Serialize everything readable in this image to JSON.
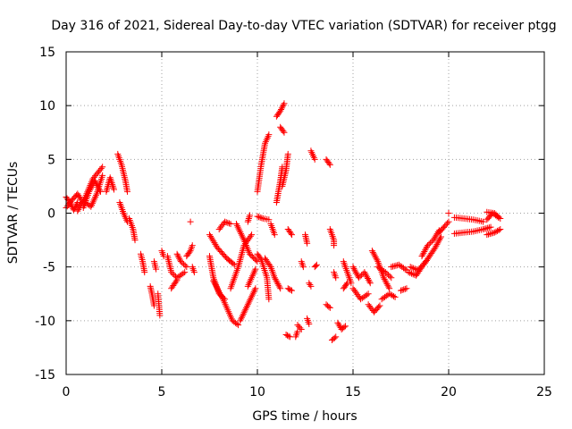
{
  "chart_data": {
    "type": "scatter",
    "title": "Day 316 of 2021, Sidereal Day-to-day VTEC variation (SDTVAR) for receiver ptgg",
    "xlabel": "GPS time / hours",
    "ylabel": "SDTVAR / TECUs",
    "xlim": [
      0,
      25
    ],
    "ylim": [
      -15,
      15
    ],
    "xticks": [
      "0",
      "5",
      "10",
      "15",
      "20",
      "25"
    ],
    "yticks": [
      "-15",
      "-10",
      "-5",
      "0",
      "5",
      "10",
      "15"
    ],
    "grid": true,
    "marker_color": "#ff0000",
    "marker": "+",
    "segments": [
      [
        [
          0.0,
          0.5
        ],
        [
          0.3,
          1.2
        ],
        [
          0.6,
          1.8
        ],
        [
          0.8,
          1.2
        ]
      ],
      [
        [
          0.0,
          1.5
        ],
        [
          0.2,
          1.0
        ],
        [
          0.4,
          0.3
        ],
        [
          0.6,
          1.0
        ]
      ],
      [
        [
          0.6,
          0.2
        ],
        [
          1.0,
          1.5
        ],
        [
          1.4,
          3.2
        ],
        [
          1.9,
          4.3
        ]
      ],
      [
        [
          0.9,
          0.5
        ],
        [
          1.2,
          2.0
        ],
        [
          1.5,
          3.0
        ],
        [
          1.8,
          2.0
        ]
      ],
      [
        [
          1.0,
          1.0
        ],
        [
          1.3,
          0.6
        ],
        [
          1.6,
          1.8
        ],
        [
          1.9,
          3.5
        ]
      ],
      [
        [
          2.1,
          2.0
        ],
        [
          2.3,
          3.3
        ],
        [
          2.5,
          2.2
        ]
      ],
      [
        [
          2.7,
          5.5
        ],
        [
          2.9,
          4.5
        ],
        [
          3.1,
          3.0
        ],
        [
          3.2,
          2.0
        ]
      ],
      [
        [
          2.8,
          1.0
        ],
        [
          3.0,
          0.0
        ],
        [
          3.2,
          -0.8
        ]
      ],
      [
        [
          3.3,
          -0.5
        ],
        [
          3.5,
          -1.5
        ],
        [
          3.6,
          -2.5
        ]
      ],
      [
        [
          3.9,
          -3.8
        ],
        [
          4.0,
          -4.5
        ],
        [
          4.1,
          -5.5
        ]
      ],
      [
        [
          4.4,
          -6.8
        ],
        [
          4.5,
          -7.6
        ],
        [
          4.6,
          -8.6
        ]
      ],
      [
        [
          4.6,
          -4.5
        ],
        [
          4.7,
          -5.2
        ]
      ],
      [
        [
          4.8,
          -7.5
        ],
        [
          4.9,
          -9.5
        ]
      ],
      [
        [
          5.0,
          -3.5
        ],
        [
          5.1,
          -4.0
        ]
      ],
      [
        [
          5.3,
          -4.0
        ],
        [
          5.5,
          -5.5
        ],
        [
          5.8,
          -6.0
        ],
        [
          6.2,
          -5.5
        ]
      ],
      [
        [
          5.5,
          -7.0
        ],
        [
          5.8,
          -6.2
        ]
      ],
      [
        [
          5.8,
          -3.8
        ],
        [
          6.0,
          -4.5
        ],
        [
          6.3,
          -5.0
        ]
      ],
      [
        [
          6.3,
          -4.0
        ],
        [
          6.5,
          -3.5
        ],
        [
          6.6,
          -3.0
        ]
      ],
      [
        [
          6.5,
          -0.8
        ]
      ],
      [
        [
          6.6,
          -5.0
        ],
        [
          6.7,
          -5.5
        ]
      ],
      [
        [
          7.5,
          -2.0
        ],
        [
          7.9,
          -3.2
        ],
        [
          8.4,
          -4.2
        ],
        [
          8.8,
          -4.8
        ]
      ],
      [
        [
          7.5,
          -4.0
        ],
        [
          7.7,
          -6.0
        ],
        [
          8.0,
          -7.5
        ],
        [
          8.3,
          -8.0
        ]
      ],
      [
        [
          7.7,
          -6.3
        ],
        [
          8.2,
          -8.0
        ],
        [
          8.7,
          -10.0
        ],
        [
          9.0,
          -10.4
        ]
      ],
      [
        [
          8.0,
          -1.5
        ],
        [
          8.3,
          -0.8
        ],
        [
          8.6,
          -1.0
        ]
      ],
      [
        [
          8.6,
          -7.0
        ],
        [
          9.0,
          -5.0
        ],
        [
          9.3,
          -3.0
        ],
        [
          9.7,
          -2.0
        ]
      ],
      [
        [
          8.9,
          -1.0
        ],
        [
          9.3,
          -2.5
        ],
        [
          9.6,
          -3.8
        ],
        [
          10.0,
          -4.5
        ]
      ],
      [
        [
          9.1,
          -10.0
        ],
        [
          9.5,
          -8.5
        ],
        [
          9.9,
          -7.0
        ]
      ],
      [
        [
          9.5,
          -6.8
        ],
        [
          9.7,
          -6.0
        ],
        [
          9.9,
          -5.2
        ]
      ],
      [
        [
          9.5,
          -0.8
        ],
        [
          9.6,
          -0.2
        ]
      ],
      [
        [
          10.0,
          -3.8
        ],
        [
          10.2,
          -4.3
        ],
        [
          10.5,
          -6.0
        ],
        [
          10.6,
          -8.0
        ]
      ],
      [
        [
          10.0,
          -0.3
        ],
        [
          10.3,
          -0.5
        ],
        [
          10.6,
          -0.6
        ]
      ],
      [
        [
          10.0,
          2.0
        ],
        [
          10.2,
          4.5
        ],
        [
          10.4,
          6.5
        ],
        [
          10.6,
          7.3
        ]
      ],
      [
        [
          10.4,
          -4.2
        ],
        [
          10.7,
          -5.0
        ],
        [
          10.9,
          -6.0
        ],
        [
          11.2,
          -7.0
        ]
      ],
      [
        [
          10.7,
          -1.0
        ],
        [
          10.9,
          -2.0
        ]
      ],
      [
        [
          11.0,
          9.0
        ],
        [
          11.2,
          9.5
        ],
        [
          11.4,
          10.2
        ]
      ],
      [
        [
          11.0,
          1.0
        ],
        [
          11.2,
          3.0
        ],
        [
          11.3,
          4.3
        ]
      ],
      [
        [
          11.2,
          8.0
        ],
        [
          11.4,
          7.5
        ]
      ],
      [
        [
          11.3,
          2.5
        ],
        [
          11.5,
          4.0
        ],
        [
          11.6,
          5.5
        ]
      ],
      [
        [
          11.5,
          -11.3
        ],
        [
          11.7,
          -11.5
        ]
      ],
      [
        [
          11.6,
          -7.0
        ],
        [
          11.8,
          -7.2
        ]
      ],
      [
        [
          11.6,
          -1.5
        ],
        [
          11.8,
          -2.0
        ]
      ],
      [
        [
          12.0,
          -11.5
        ],
        [
          12.1,
          -11.0
        ]
      ],
      [
        [
          12.1,
          -10.4
        ],
        [
          12.3,
          -10.8
        ]
      ],
      [
        [
          12.3,
          -4.5
        ],
        [
          12.4,
          -5.0
        ]
      ],
      [
        [
          12.5,
          -2.0
        ],
        [
          12.6,
          -2.8
        ]
      ],
      [
        [
          12.6,
          -9.8
        ],
        [
          12.7,
          -10.3
        ]
      ],
      [
        [
          12.7,
          -6.5
        ],
        [
          12.8,
          -6.8
        ]
      ],
      [
        [
          12.8,
          5.8
        ],
        [
          13.0,
          5.0
        ]
      ],
      [
        [
          13.0,
          -5.0
        ],
        [
          13.1,
          -4.8
        ]
      ],
      [
        [
          13.6,
          -8.5
        ],
        [
          13.8,
          -8.8
        ]
      ],
      [
        [
          13.6,
          5.0
        ],
        [
          13.8,
          4.5
        ]
      ],
      [
        [
          13.8,
          -1.5
        ],
        [
          14.0,
          -2.5
        ],
        [
          14.0,
          -3.0
        ]
      ],
      [
        [
          13.9,
          -11.8
        ],
        [
          14.1,
          -11.5
        ]
      ],
      [
        [
          14.2,
          -10.2
        ],
        [
          14.4,
          -10.8
        ],
        [
          14.6,
          -10.5
        ]
      ],
      [
        [
          14.0,
          -5.5
        ],
        [
          14.1,
          -6.0
        ]
      ],
      [
        [
          14.5,
          -4.5
        ],
        [
          14.7,
          -5.5
        ],
        [
          14.9,
          -6.5
        ]
      ],
      [
        [
          14.5,
          -7.0
        ],
        [
          14.7,
          -6.5
        ]
      ],
      [
        [
          15.0,
          -5.0
        ],
        [
          15.3,
          -6.0
        ],
        [
          15.6,
          -5.5
        ],
        [
          15.9,
          -6.5
        ]
      ],
      [
        [
          15.0,
          -7.0
        ],
        [
          15.4,
          -8.0
        ],
        [
          15.8,
          -7.5
        ]
      ],
      [
        [
          15.8,
          -8.5
        ],
        [
          16.1,
          -9.2
        ],
        [
          16.4,
          -8.6
        ]
      ],
      [
        [
          16.0,
          -3.5
        ],
        [
          16.3,
          -4.5
        ],
        [
          16.6,
          -6.0
        ],
        [
          16.9,
          -7.0
        ]
      ],
      [
        [
          16.3,
          -5.0
        ],
        [
          16.7,
          -5.5
        ],
        [
          17.0,
          -6.0
        ]
      ],
      [
        [
          16.5,
          -8.0
        ],
        [
          16.9,
          -7.5
        ],
        [
          17.2,
          -7.8
        ]
      ],
      [
        [
          17.0,
          -5.0
        ],
        [
          17.4,
          -4.8
        ],
        [
          17.8,
          -5.3
        ]
      ],
      [
        [
          17.5,
          -7.2
        ],
        [
          17.8,
          -7.0
        ]
      ],
      [
        [
          17.9,
          -5.5
        ],
        [
          18.3,
          -5.8
        ],
        [
          18.6,
          -5.0
        ]
      ],
      [
        [
          18.0,
          -5.0
        ],
        [
          18.4,
          -5.3
        ],
        [
          18.8,
          -4.5
        ]
      ],
      [
        [
          18.6,
          -4.0
        ],
        [
          18.9,
          -3.0
        ],
        [
          19.2,
          -2.5
        ],
        [
          19.5,
          -1.6
        ]
      ],
      [
        [
          18.7,
          -4.8
        ],
        [
          19.0,
          -4.0
        ],
        [
          19.3,
          -3.2
        ],
        [
          19.6,
          -2.2
        ]
      ],
      [
        [
          19.5,
          -1.8
        ],
        [
          19.8,
          -1.2
        ],
        [
          20.0,
          -0.8
        ]
      ],
      [
        [
          20.0,
          0.0
        ]
      ],
      [
        [
          20.3,
          -0.4
        ],
        [
          20.8,
          -0.5
        ],
        [
          21.3,
          -0.6
        ],
        [
          21.8,
          -0.8
        ]
      ],
      [
        [
          20.3,
          -1.9
        ],
        [
          20.8,
          -1.8
        ],
        [
          21.3,
          -1.7
        ],
        [
          21.8,
          -1.5
        ],
        [
          22.2,
          -1.3
        ]
      ],
      [
        [
          22.0,
          -0.6
        ],
        [
          22.3,
          0.0
        ],
        [
          22.6,
          -0.4
        ]
      ],
      [
        [
          22.0,
          -2.0
        ],
        [
          22.4,
          -1.8
        ],
        [
          22.7,
          -1.5
        ]
      ],
      [
        [
          22.0,
          0.1
        ],
        [
          22.4,
          0.0
        ],
        [
          22.7,
          -0.5
        ]
      ]
    ]
  }
}
